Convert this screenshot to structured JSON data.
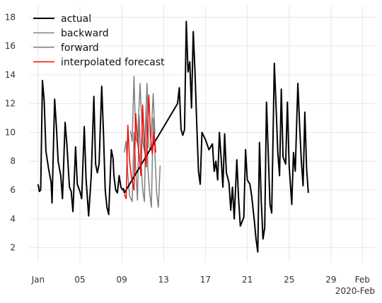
{
  "chart_data": {
    "type": "line",
    "x_axis": {
      "type": "date",
      "range": [
        "2020-01-01",
        "2020-02-01"
      ],
      "ticks": [
        {
          "date": "2020-01-01",
          "label": "Jan"
        },
        {
          "date": "2020-01-05",
          "label": "05"
        },
        {
          "date": "2020-01-09",
          "label": "09"
        },
        {
          "date": "2020-01-13",
          "label": "13"
        },
        {
          "date": "2020-01-17",
          "label": "17"
        },
        {
          "date": "2020-01-21",
          "label": "21"
        },
        {
          "date": "2020-01-25",
          "label": "25"
        },
        {
          "date": "2020-01-29",
          "label": "29"
        },
        {
          "date": "2020-02-01",
          "label": "Feb"
        }
      ],
      "offset_label": "2020-Feb"
    },
    "y_axis": {
      "range": [
        1,
        18.8
      ],
      "ticks": [
        2,
        4,
        6,
        8,
        10,
        12,
        14,
        16,
        18
      ]
    },
    "grid": true,
    "legend": {
      "position": "top-left",
      "entries": [
        {
          "label": "actual",
          "color": "#000000"
        },
        {
          "label": "backward",
          "color": "#808080"
        },
        {
          "label": "forward",
          "color": "#808080"
        },
        {
          "label": "interpolated forecast",
          "color": "#ff0000"
        }
      ]
    },
    "series": [
      {
        "name": "actual",
        "color": "#000000",
        "width": 2,
        "points": [
          [
            "2020-01-01 00:00",
            6.4
          ],
          [
            "2020-01-01 03:00",
            5.9
          ],
          [
            "2020-01-01 06:00",
            6.0
          ],
          [
            "2020-01-01 10:00",
            13.6
          ],
          [
            "2020-01-01 14:00",
            12.2
          ],
          [
            "2020-01-01 18:00",
            8.7
          ],
          [
            "2020-01-02 00:00",
            7.5
          ],
          [
            "2020-01-02 06:00",
            6.5
          ],
          [
            "2020-01-02 08:00",
            5.1
          ],
          [
            "2020-01-02 14:00",
            12.3
          ],
          [
            "2020-01-02 18:00",
            10.4
          ],
          [
            "2020-01-02 22:00",
            8.0
          ],
          [
            "2020-01-03 04:00",
            7.0
          ],
          [
            "2020-01-03 08:00",
            5.4
          ],
          [
            "2020-01-03 14:00",
            10.7
          ],
          [
            "2020-01-03 18:00",
            9.2
          ],
          [
            "2020-01-04 00:00",
            6.2
          ],
          [
            "2020-01-04 04:00",
            5.9
          ],
          [
            "2020-01-04 08:00",
            4.5
          ],
          [
            "2020-01-04 14:00",
            9.0
          ],
          [
            "2020-01-04 18:00",
            6.4
          ],
          [
            "2020-01-05 00:00",
            5.9
          ],
          [
            "2020-01-05 04:00",
            5.4
          ],
          [
            "2020-01-05 10:00",
            10.4
          ],
          [
            "2020-01-05 14:00",
            6.8
          ],
          [
            "2020-01-05 20:00",
            4.2
          ],
          [
            "2020-01-06 02:00",
            7.0
          ],
          [
            "2020-01-06 08:00",
            12.5
          ],
          [
            "2020-01-06 12:00",
            7.8
          ],
          [
            "2020-01-06 16:00",
            7.2
          ],
          [
            "2020-01-06 20:00",
            7.8
          ],
          [
            "2020-01-07 02:00",
            13.2
          ],
          [
            "2020-01-07 06:00",
            10.0
          ],
          [
            "2020-01-07 10:00",
            6.0
          ],
          [
            "2020-01-07 14:00",
            4.8
          ],
          [
            "2020-01-07 18:00",
            4.3
          ],
          [
            "2020-01-08 00:00",
            8.8
          ],
          [
            "2020-01-08 04:00",
            8.2
          ],
          [
            "2020-01-08 06:00",
            7.0
          ],
          [
            "2020-01-08 10:00",
            6.0
          ],
          [
            "2020-01-08 14:00",
            5.8
          ],
          [
            "2020-01-08 18:00",
            7.0
          ],
          [
            "2020-01-08 22:00",
            6.2
          ],
          [
            "2020-01-09 02:00",
            6.0
          ],
          [
            "2020-01-09 04:00",
            6.1
          ],
          [
            "2020-01-09 06:00",
            5.8
          ],
          [
            "2020-01-14 08:00",
            12.0
          ],
          [
            "2020-01-14 12:00",
            13.1
          ],
          [
            "2020-01-14 16:00",
            10.2
          ],
          [
            "2020-01-14 20:00",
            9.8
          ],
          [
            "2020-01-15 00:00",
            10.2
          ],
          [
            "2020-01-15 04:00",
            17.7
          ],
          [
            "2020-01-15 08:00",
            14.2
          ],
          [
            "2020-01-15 12:00",
            14.9
          ],
          [
            "2020-01-15 16:00",
            11.7
          ],
          [
            "2020-01-15 20:00",
            17.0
          ],
          [
            "2020-01-16 00:00",
            14.2
          ],
          [
            "2020-01-16 04:00",
            10.6
          ],
          [
            "2020-01-16 08:00",
            7.3
          ],
          [
            "2020-01-16 12:00",
            6.4
          ],
          [
            "2020-01-16 16:00",
            10.0
          ],
          [
            "2020-01-17 00:00",
            9.5
          ],
          [
            "2020-01-17 08:00",
            8.8
          ],
          [
            "2020-01-17 16:00",
            9.2
          ],
          [
            "2020-01-17 20:00",
            7.3
          ],
          [
            "2020-01-18 00:00",
            8.0
          ],
          [
            "2020-01-18 04:00",
            6.7
          ],
          [
            "2020-01-18 08:00",
            10.0
          ],
          [
            "2020-01-18 12:00",
            8.2
          ],
          [
            "2020-01-18 16:00",
            6.2
          ],
          [
            "2020-01-18 20:00",
            9.9
          ],
          [
            "2020-01-19 00:00",
            7.2
          ],
          [
            "2020-01-19 06:00",
            6.5
          ],
          [
            "2020-01-19 10:00",
            4.6
          ],
          [
            "2020-01-19 14:00",
            6.2
          ],
          [
            "2020-01-19 18:00",
            4.0
          ],
          [
            "2020-01-20 00:00",
            8.1
          ],
          [
            "2020-01-20 04:00",
            5.4
          ],
          [
            "2020-01-20 08:00",
            3.5
          ],
          [
            "2020-01-20 16:00",
            4.1
          ],
          [
            "2020-01-20 20:00",
            8.8
          ],
          [
            "2020-01-21 00:00",
            6.7
          ],
          [
            "2020-01-21 06:00",
            6.4
          ],
          [
            "2020-01-21 10:00",
            5.6
          ],
          [
            "2020-01-21 16:00",
            3.9
          ],
          [
            "2020-01-21 20:00",
            2.6
          ],
          [
            "2020-01-22 00:00",
            1.7
          ],
          [
            "2020-01-22 04:00",
            9.3
          ],
          [
            "2020-01-22 08:00",
            5.2
          ],
          [
            "2020-01-22 12:00",
            2.6
          ],
          [
            "2020-01-22 16:00",
            3.4
          ],
          [
            "2020-01-22 20:00",
            12.1
          ],
          [
            "2020-01-23 00:00",
            8.6
          ],
          [
            "2020-01-23 04:00",
            5.0
          ],
          [
            "2020-01-23 08:00",
            4.4
          ],
          [
            "2020-01-23 14:00",
            14.8
          ],
          [
            "2020-01-23 18:00",
            11.8
          ],
          [
            "2020-01-23 22:00",
            8.6
          ],
          [
            "2020-01-24 02:00",
            7.0
          ],
          [
            "2020-01-24 06:00",
            13.0
          ],
          [
            "2020-01-24 10:00",
            8.3
          ],
          [
            "2020-01-24 16:00",
            7.8
          ],
          [
            "2020-01-24 20:00",
            12.1
          ],
          [
            "2020-01-25 00:00",
            7.7
          ],
          [
            "2020-01-25 06:00",
            5.0
          ],
          [
            "2020-01-25 10:00",
            8.6
          ],
          [
            "2020-01-25 14:00",
            7.3
          ],
          [
            "2020-01-25 20:00",
            13.4
          ],
          [
            "2020-01-26 00:00",
            10.5
          ],
          [
            "2020-01-26 04:00",
            8.0
          ],
          [
            "2020-01-26 08:00",
            6.3
          ],
          [
            "2020-01-26 12:00",
            11.4
          ],
          [
            "2020-01-26 16:00",
            7.5
          ],
          [
            "2020-01-26 20:00",
            5.8
          ]
        ]
      },
      {
        "name": "backward",
        "color": "#808080",
        "width": 1.5,
        "points": [
          [
            "2020-01-09 20:00",
            10.1
          ],
          [
            "2020-01-10 00:00",
            9.4
          ],
          [
            "2020-01-10 04:00",
            13.9
          ],
          [
            "2020-01-10 08:00",
            9.6
          ],
          [
            "2020-01-10 12:00",
            9.3
          ],
          [
            "2020-01-10 18:00",
            13.4
          ],
          [
            "2020-01-11 00:00",
            9.4
          ],
          [
            "2020-01-11 04:00",
            8.7
          ],
          [
            "2020-01-11 10:00",
            13.4
          ],
          [
            "2020-01-11 14:00",
            9.0
          ],
          [
            "2020-01-11 18:00",
            8.8
          ],
          [
            "2020-01-12 00:00",
            12.7
          ],
          [
            "2020-01-12 04:00",
            9.9
          ]
        ]
      },
      {
        "name": "forward",
        "color": "#808080",
        "width": 1.5,
        "points": [
          [
            "2020-01-09 06:00",
            8.6
          ],
          [
            "2020-01-09 10:00",
            9.4
          ],
          [
            "2020-01-09 14:00",
            7.0
          ],
          [
            "2020-01-09 18:00",
            5.6
          ],
          [
            "2020-01-10 00:00",
            5.2
          ],
          [
            "2020-01-10 04:00",
            10.0
          ],
          [
            "2020-01-10 08:00",
            7.5
          ],
          [
            "2020-01-10 12:00",
            5.3
          ],
          [
            "2020-01-10 16:00",
            11.2
          ],
          [
            "2020-01-10 20:00",
            8.0
          ],
          [
            "2020-01-11 00:00",
            6.0
          ],
          [
            "2020-01-11 04:00",
            5.2
          ],
          [
            "2020-01-11 08:00",
            12.0
          ],
          [
            "2020-01-11 12:00",
            7.5
          ],
          [
            "2020-01-11 16:00",
            5.8
          ],
          [
            "2020-01-11 20:00",
            4.8
          ],
          [
            "2020-01-12 00:00",
            11.0
          ],
          [
            "2020-01-12 04:00",
            8.6
          ],
          [
            "2020-01-12 08:00",
            5.8
          ],
          [
            "2020-01-12 12:00",
            4.8
          ],
          [
            "2020-01-12 16:00",
            7.7
          ]
        ]
      },
      {
        "name": "interpolated forecast",
        "color": "#ff0000",
        "width": 1.5,
        "points": [
          [
            "2020-01-09 06:00",
            5.7
          ],
          [
            "2020-01-09 10:00",
            5.4
          ],
          [
            "2020-01-09 14:00",
            10.5
          ],
          [
            "2020-01-09 18:00",
            8.0
          ],
          [
            "2020-01-09 22:00",
            6.9
          ],
          [
            "2020-01-10 04:00",
            6.0
          ],
          [
            "2020-01-10 08:00",
            11.3
          ],
          [
            "2020-01-10 12:00",
            9.4
          ],
          [
            "2020-01-10 16:00",
            8.4
          ],
          [
            "2020-01-10 20:00",
            7.0
          ],
          [
            "2020-01-11 00:00",
            11.9
          ],
          [
            "2020-01-11 04:00",
            9.0
          ],
          [
            "2020-01-11 08:00",
            7.6
          ],
          [
            "2020-01-11 14:00",
            12.6
          ],
          [
            "2020-01-11 18:00",
            9.7
          ],
          [
            "2020-01-11 22:00",
            8.5
          ],
          [
            "2020-01-12 02:00",
            10.0
          ],
          [
            "2020-01-12 06:00",
            8.6
          ]
        ]
      }
    ]
  }
}
